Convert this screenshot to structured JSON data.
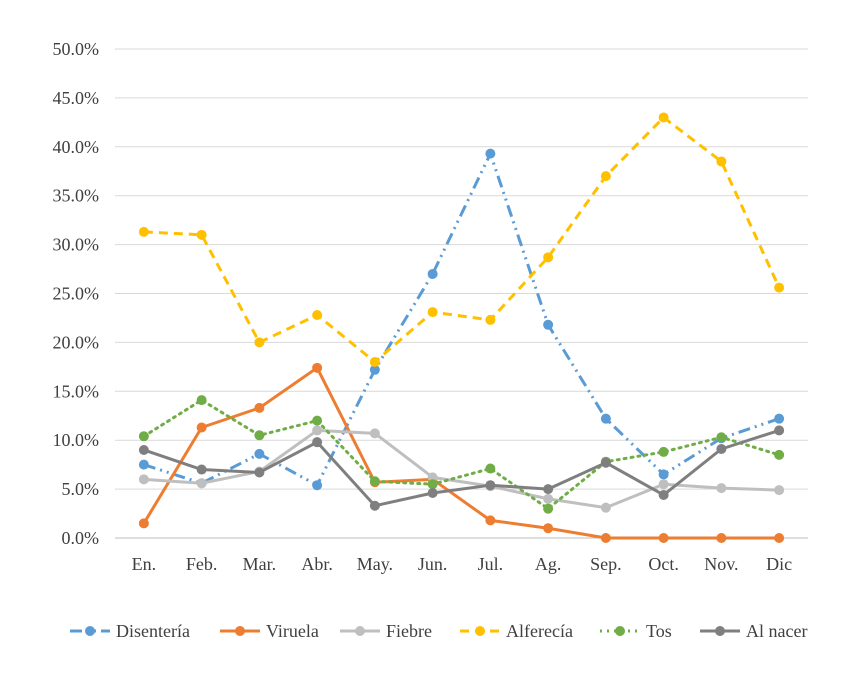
{
  "chart_data": {
    "type": "line",
    "title": "",
    "xlabel": "",
    "ylabel": "",
    "categories": [
      "En.",
      "Feb.",
      "Mar.",
      "Abr.",
      "May.",
      "Jun.",
      "Jul.",
      "Ag.",
      "Sep.",
      "Oct.",
      "Nov.",
      "Dic"
    ],
    "ylim": [
      0,
      50
    ],
    "yticks": [
      "0.0%",
      "5.0%",
      "10.0%",
      "15.0%",
      "20.0%",
      "25.0%",
      "30.0%",
      "35.0%",
      "40.0%",
      "45.0%",
      "50.0%"
    ],
    "grid": true,
    "legend_position": "bottom",
    "series": [
      {
        "name": "Disentería",
        "color": "#5B9BD5",
        "dash": "dash-dot-dot",
        "values": [
          7.5,
          5.6,
          8.6,
          5.4,
          17.2,
          27.0,
          39.3,
          21.8,
          12.2,
          6.5,
          10.2,
          12.2
        ]
      },
      {
        "name": "Viruela",
        "color": "#ED7D31",
        "dash": "solid",
        "values": [
          1.5,
          11.3,
          13.3,
          17.4,
          5.7,
          6.0,
          1.8,
          1.0,
          0.0,
          0.0,
          0.0,
          0.0
        ]
      },
      {
        "name": "Fiebre",
        "color": "#BFBFBF",
        "dash": "solid",
        "values": [
          6.0,
          5.6,
          6.8,
          11.0,
          10.7,
          6.2,
          5.3,
          4.0,
          3.1,
          5.5,
          5.1,
          4.9
        ]
      },
      {
        "name": "Alferecía",
        "color": "#FFC000",
        "dash": "dash",
        "values": [
          31.3,
          31.0,
          20.0,
          22.8,
          18.0,
          23.1,
          22.3,
          28.7,
          37.0,
          43.0,
          38.5,
          25.6
        ]
      },
      {
        "name": "Tos",
        "color": "#70AD47",
        "dash": "dot",
        "values": [
          10.4,
          14.1,
          10.5,
          12.0,
          5.8,
          5.5,
          7.1,
          3.0,
          7.8,
          8.8,
          10.3,
          8.5
        ]
      },
      {
        "name": "Al nacer",
        "color": "#7F7F7F",
        "dash": "solid",
        "values": [
          9.0,
          7.0,
          6.7,
          9.8,
          3.3,
          4.6,
          5.4,
          5.0,
          7.7,
          4.4,
          9.1,
          11.0
        ]
      }
    ]
  }
}
